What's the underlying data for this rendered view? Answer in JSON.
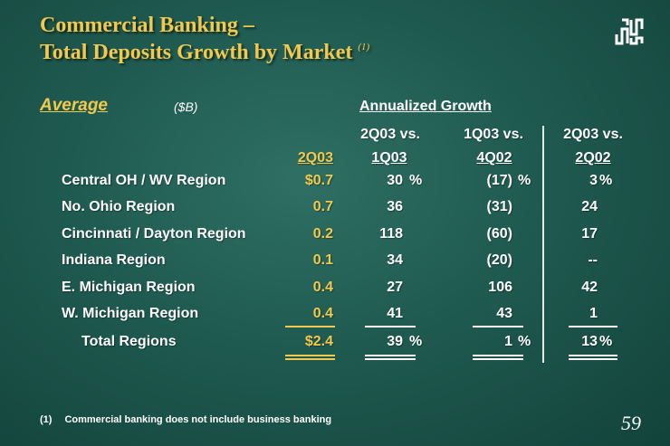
{
  "title": {
    "line1": "Commercial Banking –",
    "line2": "Total Deposits Growth by Market",
    "footnote_ref": "(1)"
  },
  "logo": {
    "icon": "huntington-logo-icon"
  },
  "header": {
    "average": "Average",
    "units": "($B)",
    "annualized": "Annualized Growth"
  },
  "columns": {
    "c1": {
      "top": "",
      "bottom": "2Q03"
    },
    "c2": {
      "top": "2Q03 vs.",
      "bottom": "1Q03"
    },
    "c3": {
      "top": "1Q03 vs.",
      "bottom": "4Q02"
    },
    "c4": {
      "top": "2Q03 vs.",
      "bottom": "2Q02"
    }
  },
  "rows": [
    {
      "label": "Central OH / WV Region",
      "v1": "$0.7",
      "v2": "30",
      "p2": "%",
      "v3": "(17)",
      "p3": "%",
      "v4": "3",
      "p4": "%"
    },
    {
      "label": "No. Ohio Region",
      "v1": "0.7",
      "v2": "36",
      "p2": "",
      "v3": "(31)",
      "p3": "",
      "v4": "24",
      "p4": ""
    },
    {
      "label": "Cincinnati / Dayton Region",
      "v1": "0.2",
      "v2": "118",
      "p2": "",
      "v3": "(60)",
      "p3": "",
      "v4": "17",
      "p4": ""
    },
    {
      "label": "Indiana Region",
      "v1": "0.1",
      "v2": "34",
      "p2": "",
      "v3": "(20)",
      "p3": "",
      "v4": "--",
      "p4": ""
    },
    {
      "label": "E. Michigan Region",
      "v1": "0.4",
      "v2": "27",
      "p2": "",
      "v3": "106",
      "p3": "",
      "v4": "42",
      "p4": ""
    },
    {
      "label": "W. Michigan Region",
      "v1": "0.4",
      "v2": "41",
      "p2": "",
      "v3": "43",
      "p3": "",
      "v4": "1",
      "p4": ""
    }
  ],
  "total": {
    "label": "Total Regions",
    "v1": "$2.4",
    "v2": "39",
    "p2": "%",
    "v3": "1",
    "p3": "%",
    "v4": "13",
    "p4": "%"
  },
  "footnote": {
    "num": "(1)",
    "text": "Commercial banking does not include business banking"
  },
  "page_number": "59",
  "colors": {
    "accent": "#f2c94c",
    "background": "#1f5a50",
    "text": "#ffffff"
  }
}
